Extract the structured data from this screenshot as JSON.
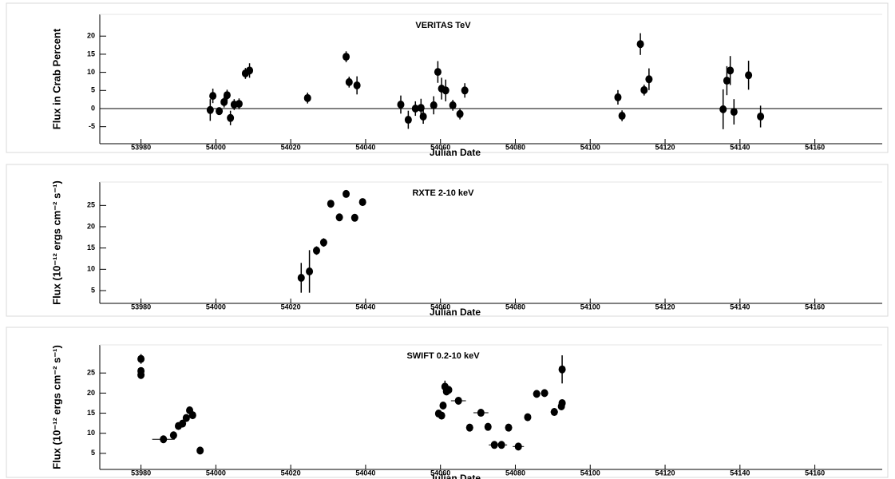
{
  "chart_data": [
    {
      "type": "scatter",
      "title": "VERITAS TeV",
      "xlabel": "Julian Date",
      "ylabel": "Flux in Crab Percent",
      "color": "#000000",
      "x": [
        53998.5,
        53999.2,
        54000.9,
        54002.2,
        54003.0,
        54003.9,
        54004.9,
        54006.2,
        54007.9,
        54009.0,
        54024.5,
        54034.8,
        54035.6,
        54037.7,
        54049.4,
        54051.4,
        54053.3,
        54054.8,
        54055.4,
        54058.2,
        54059.3,
        54060.3,
        54061.4,
        54063.3,
        54065.2,
        54066.5,
        54107.4,
        54108.5,
        54113.4,
        54114.4,
        54115.7,
        54135.5,
        54136.5,
        54137.4,
        54138.4,
        54142.3,
        54145.5
      ],
      "values": [
        -0.4,
        3.5,
        -0.7,
        1.8,
        3.7,
        -2.6,
        1.1,
        1.3,
        9.7,
        10.5,
        2.9,
        14.3,
        7.3,
        6.4,
        1.1,
        -3.1,
        0,
        0.2,
        -2.2,
        0.9,
        10.1,
        5.5,
        5.0,
        0.9,
        -1.5,
        5.0,
        3.1,
        -2.0,
        17.8,
        5.1,
        8.1,
        -0.2,
        7.7,
        10.5,
        -0.9,
        9.2,
        -2.2
      ],
      "yerr": [
        3,
        2,
        0.5,
        1.5,
        1.5,
        2,
        1.5,
        1.5,
        1.5,
        2,
        1.5,
        1.5,
        1.5,
        2.5,
        2.5,
        2.5,
        2,
        2.5,
        2,
        2.5,
        3,
        3,
        3,
        1.5,
        1.5,
        2,
        2,
        1.5,
        3,
        1.5,
        3,
        5.5,
        4,
        4,
        3.5,
        4,
        3
      ],
      "xlim": [
        53969,
        54178
      ],
      "ylim": [
        -9.7,
        26
      ],
      "xticks": [
        53980,
        54000,
        54020,
        54040,
        54060,
        54080,
        54100,
        54120,
        54140,
        54160
      ],
      "yticks": [
        -5,
        0,
        5,
        10,
        15,
        20
      ],
      "hline": 0
    },
    {
      "type": "scatter",
      "title": "RXTE 2-10 keV",
      "xlabel": "Julian Date",
      "ylabel": "Flux (10⁻¹² ergs cm⁻² s⁻¹)",
      "color": "#000000",
      "x": [
        54022.8,
        54025.0,
        54026.9,
        54028.8,
        54030.7,
        54033.0,
        54034.8,
        54037.1,
        54039.2
      ],
      "values": [
        8.0,
        9.5,
        14.4,
        16.3,
        25.4,
        22.2,
        27.7,
        22.1,
        25.8
      ],
      "yerr": [
        3.5,
        5,
        1,
        1,
        0.5,
        0.5,
        0.3,
        0.3,
        0.3
      ],
      "xlim": [
        53969,
        54178
      ],
      "ylim": [
        2,
        30.5
      ],
      "xticks": [
        53980,
        54000,
        54020,
        54040,
        54060,
        54080,
        54100,
        54120,
        54140,
        54160
      ],
      "yticks": [
        5,
        10,
        15,
        20,
        25
      ]
    },
    {
      "type": "scatter",
      "title": "SWIFT 0.2-10 keV",
      "xlabel": "Julian Date",
      "ylabel": "Flux (10⁻¹² ergs cm⁻² s⁻¹)",
      "color": "#000000",
      "x": [
        53980.0,
        53980.0,
        53980.0,
        53986.0,
        53988.7,
        53990.0,
        53991.1,
        53992.1,
        53993.0,
        53993.8,
        53995.8,
        54059.5,
        54060.3,
        54060.7,
        54061.2,
        54061.6,
        54062.2,
        54064.8,
        54067.8,
        54070.8,
        54072.7,
        54074.4,
        54076.3,
        54078.2,
        54080.8,
        54083.3,
        54085.7,
        54087.8,
        54090.4,
        54092.3,
        54092.5,
        54092.5
      ],
      "values": [
        28.5,
        25.5,
        24.5,
        8.5,
        9.5,
        11.8,
        12.4,
        13.8,
        15.7,
        14.5,
        5.7,
        14.9,
        14.4,
        16.9,
        21.6,
        20.4,
        20.8,
        18.1,
        11.4,
        15.1,
        11.6,
        7.1,
        7.1,
        11.4,
        6.7,
        14.0,
        19.8,
        20.0,
        15.3,
        16.7,
        17.5,
        25.9
      ],
      "yerr": [
        1.2,
        0.5,
        0.5,
        0.3,
        0.3,
        0.3,
        0.3,
        0.5,
        0.5,
        0.5,
        0.3,
        0.5,
        0.5,
        0.5,
        1.5,
        0.8,
        0.8,
        0.5,
        0.3,
        0.5,
        0.3,
        0.3,
        0.3,
        0.3,
        0.3,
        0.3,
        0.5,
        0.5,
        0.3,
        0.5,
        0.5,
        3.5
      ],
      "xerr": [
        0.5,
        0.5,
        0.5,
        3,
        0.5,
        0.5,
        0.5,
        0.5,
        0.5,
        0.5,
        0.5,
        0.5,
        0.5,
        0.5,
        0.5,
        0.5,
        0.5,
        2,
        0.5,
        2,
        0.5,
        1.5,
        1.5,
        0.5,
        1.5,
        0.5,
        1,
        1,
        1,
        0.5,
        0.5,
        0.5
      ],
      "xlim": [
        53969,
        54178
      ],
      "ylim": [
        1,
        32
      ],
      "xticks": [
        53980,
        54000,
        54020,
        54040,
        54060,
        54080,
        54100,
        54120,
        54140,
        54160
      ],
      "yticks": [
        5,
        10,
        15,
        20,
        25
      ]
    }
  ]
}
